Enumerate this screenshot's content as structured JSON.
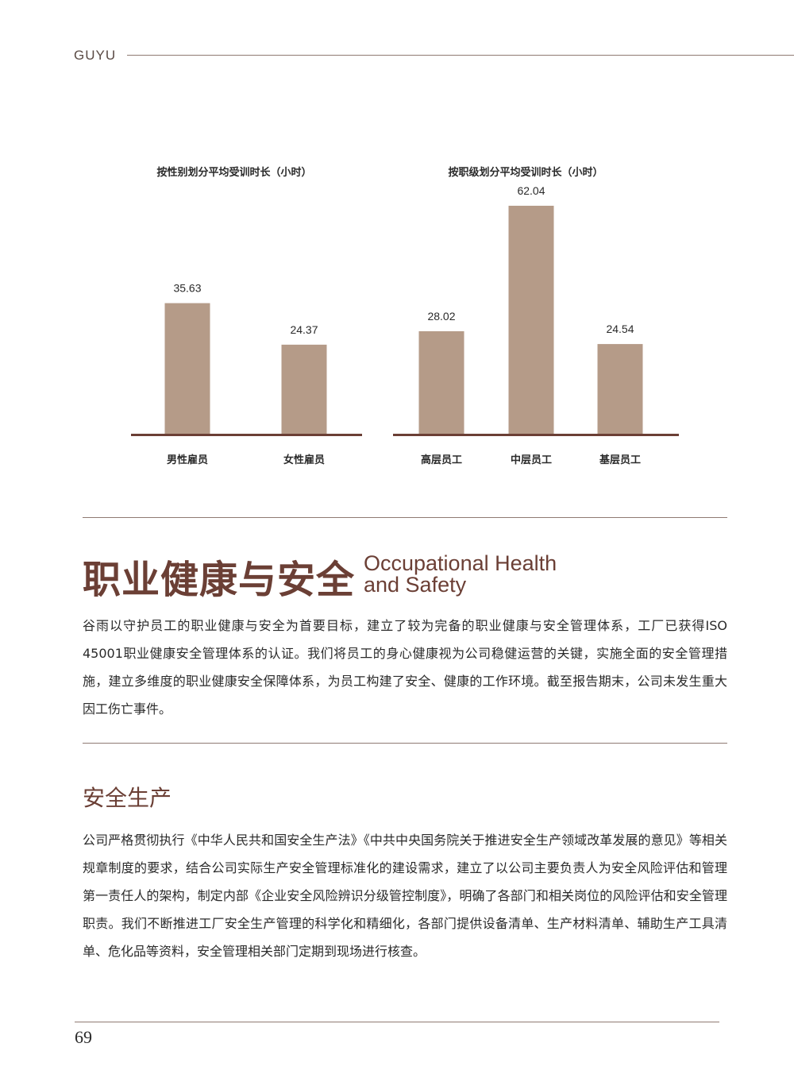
{
  "header": {
    "brand": "GUYU"
  },
  "colors": {
    "bar": "#b59b88",
    "baseline": "#6b3f35",
    "title": "#6b3f35",
    "rule": "#8f7a72"
  },
  "chart_data": [
    {
      "type": "bar",
      "title": "按性别划分平均受训时长（小时）",
      "categories": [
        "男性雇员",
        "女性雇员"
      ],
      "values": [
        35.63,
        24.37
      ],
      "value_labels": [
        "35.63",
        "24.37"
      ],
      "ylim": [
        0,
        62.04
      ],
      "grid": false
    },
    {
      "type": "bar",
      "title": "按职级划分平均受训时长（小时）",
      "categories": [
        "高层员工",
        "中层员工",
        "基层员工"
      ],
      "values": [
        28.02,
        62.04,
        24.54
      ],
      "value_labels": [
        "28.02",
        "62.04",
        "24.54"
      ],
      "ylim": [
        0,
        62.04
      ],
      "grid": false
    }
  ],
  "section": {
    "title_cn": "职业健康与安全",
    "title_en_line1": "Occupational Health",
    "title_en_line2": "and Safety",
    "intro": "谷雨以守护员工的职业健康与安全为首要目标，建立了较为完备的职业健康与安全管理体系，工厂已获得ISO 45001职业健康安全管理体系的认证。我们将员工的身心健康视为公司稳健运营的关键，实施全面的安全管理措施，建立多维度的职业健康安全保障体系，为员工构建了安全、健康的工作环境。截至报告期末，公司未发生重大因工伤亡事件。"
  },
  "subsection": {
    "title": "安全生产",
    "body": "公司严格贯彻执行《中华人民共和国安全生产法》《中共中央国务院关于推进安全生产领域改革发展的意见》等相关规章制度的要求，结合公司实际生产安全管理标准化的建设需求，建立了以公司主要负责人为安全风险评估和管理第一责任人的架构，制定内部《企业安全风险辨识分级管控制度》，明确了各部门和相关岗位的风险评估和安全管理职责。我们不断推进工厂安全生产管理的科学化和精细化，各部门提供设备清单、生产材料清单、辅助生产工具清单、危化品等资料，安全管理相关部门定期到现场进行核查。"
  },
  "footer": {
    "page_number": "69"
  }
}
